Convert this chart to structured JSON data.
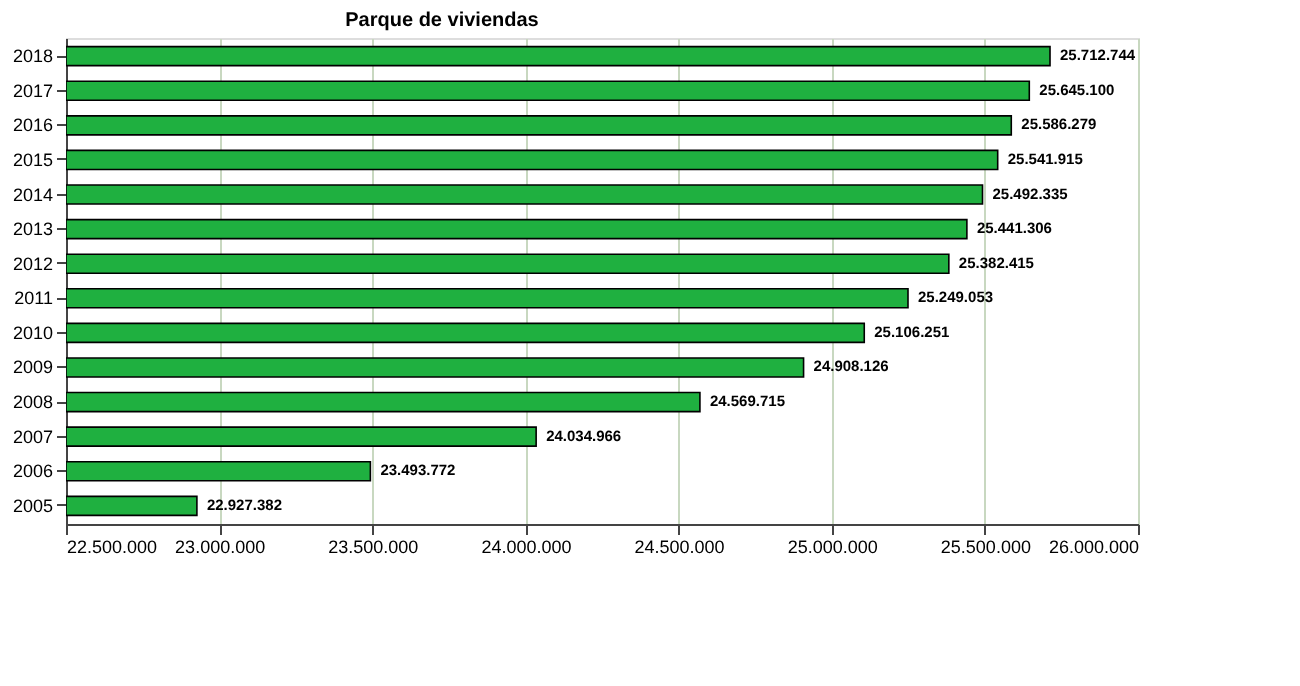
{
  "chart_data": {
    "type": "bar",
    "orientation": "horizontal",
    "title": "Parque de viviendas",
    "categories": [
      "2018",
      "2017",
      "2016",
      "2015",
      "2014",
      "2013",
      "2012",
      "2011",
      "2010",
      "2009",
      "2008",
      "2007",
      "2006",
      "2005"
    ],
    "values": [
      25712744,
      25645100,
      25586279,
      25541915,
      25492335,
      25441306,
      25382415,
      25249053,
      25106251,
      24908126,
      24569715,
      24034966,
      23493772,
      22927382
    ],
    "value_labels": [
      "25.712.744",
      "25.645.100",
      "25.586.279",
      "25.541.915",
      "25.492.335",
      "25.441.306",
      "25.382.415",
      "25.249.053",
      "25.106.251",
      "24.908.126",
      "24.569.715",
      "24.034.966",
      "23.493.772",
      "22.927.382"
    ],
    "color": "#1fb040",
    "xlim": [
      22500000,
      26000000
    ],
    "xticks": [
      {
        "value": 22500000,
        "label": "22.500.000"
      },
      {
        "value": 23000000,
        "label": "23.000.000"
      },
      {
        "value": 23500000,
        "label": "23.500.000"
      },
      {
        "value": 24000000,
        "label": "24.000.000"
      },
      {
        "value": 24500000,
        "label": "24.500.000"
      },
      {
        "value": 25000000,
        "label": "25.000.000"
      },
      {
        "value": 25500000,
        "label": "25.500.000"
      },
      {
        "value": 26000000,
        "label": "26.000.000"
      }
    ],
    "grid": "x"
  }
}
